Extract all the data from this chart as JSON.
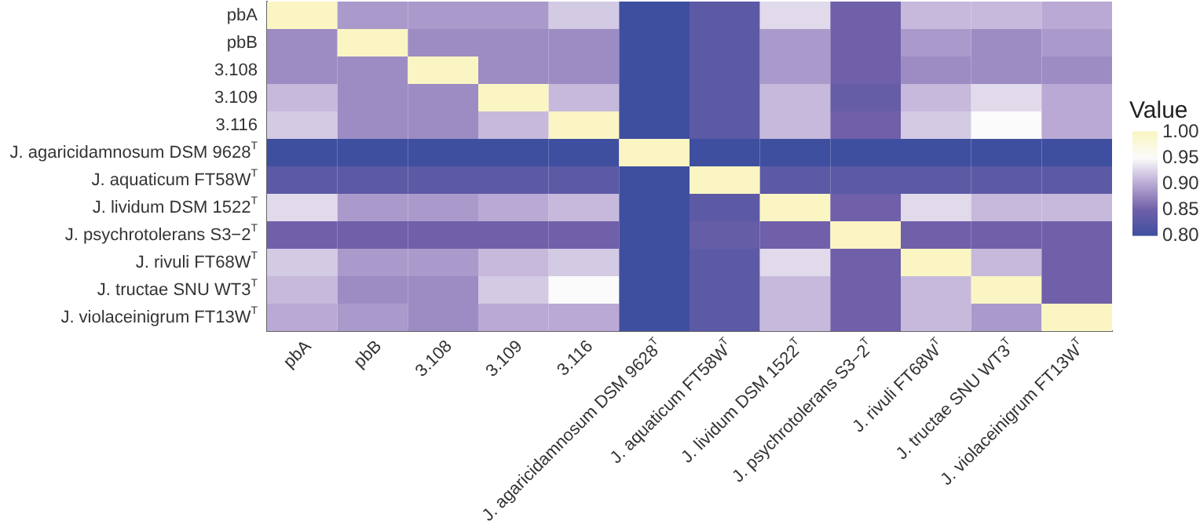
{
  "chart_data": {
    "type": "heatmap",
    "categories": [
      "pbA",
      "pbB",
      "3.108",
      "3.109",
      "3.116",
      "J. agaricidamnosum DSM 9628$^{T}$",
      "J. aquaticum FT58W$^{T}$",
      "J. lividum DSM 1522$^{T}$",
      "J. psychrotolerans S3−2$^{T}$",
      "J. rivuli FT68W$^{T}$",
      "J. tructae SNU WT3$^{T}$",
      "J. violaceinigrum FT13W$^{T}$"
    ],
    "y_categories": [
      "pbA",
      "pbB",
      "3.108",
      "3.109",
      "3.116",
      "J. agaricidamnosum DSM 9628$^{T}$",
      "J. aquaticum FT58W$^{T}$",
      "J. lividum DSM 1522$^{T}$",
      "J. psychrotolerans S3−2$^{T}$",
      "J. rivuli FT68W$^{T}$",
      "J. tructae SNU WT3$^{T}$",
      "J. violaceinigrum FT13W$^{T}$"
    ],
    "cells": [
      [
        1.0,
        0.89,
        0.89,
        0.89,
        0.92,
        0.8,
        0.83,
        0.93,
        0.85,
        0.91,
        0.91,
        0.9
      ],
      [
        0.88,
        1.0,
        0.88,
        0.88,
        0.88,
        0.8,
        0.83,
        0.89,
        0.85,
        0.89,
        0.88,
        0.89
      ],
      [
        0.88,
        0.88,
        1.0,
        0.88,
        0.88,
        0.8,
        0.83,
        0.89,
        0.85,
        0.88,
        0.88,
        0.88
      ],
      [
        0.91,
        0.88,
        0.88,
        1.0,
        0.91,
        0.8,
        0.83,
        0.91,
        0.84,
        0.91,
        0.93,
        0.9
      ],
      [
        0.92,
        0.88,
        0.88,
        0.91,
        1.0,
        0.8,
        0.83,
        0.91,
        0.85,
        0.92,
        0.95,
        0.9
      ],
      [
        0.8,
        0.8,
        0.8,
        0.8,
        0.8,
        1.0,
        0.8,
        0.8,
        0.8,
        0.8,
        0.8,
        0.8
      ],
      [
        0.83,
        0.83,
        0.83,
        0.83,
        0.83,
        0.8,
        1.0,
        0.83,
        0.83,
        0.83,
        0.83,
        0.83
      ],
      [
        0.93,
        0.89,
        0.89,
        0.9,
        0.91,
        0.8,
        0.83,
        1.0,
        0.85,
        0.93,
        0.91,
        0.91
      ],
      [
        0.85,
        0.85,
        0.85,
        0.85,
        0.85,
        0.8,
        0.84,
        0.85,
        1.0,
        0.85,
        0.85,
        0.85
      ],
      [
        0.92,
        0.89,
        0.89,
        0.91,
        0.92,
        0.8,
        0.83,
        0.93,
        0.85,
        1.0,
        0.91,
        0.85
      ],
      [
        0.91,
        0.88,
        0.88,
        0.92,
        0.95,
        0.8,
        0.83,
        0.91,
        0.85,
        0.91,
        1.0,
        0.85
      ],
      [
        0.9,
        0.89,
        0.88,
        0.9,
        0.9,
        0.8,
        0.83,
        0.91,
        0.85,
        0.91,
        0.89,
        1.0
      ]
    ],
    "legend_title": "Value",
    "clim": [
      0.8,
      1.0
    ],
    "cticks": [
      {
        "value": 0.8,
        "label": "0.80"
      },
      {
        "value": 0.85,
        "label": "0.85"
      },
      {
        "value": 0.9,
        "label": "0.90"
      },
      {
        "value": 0.95,
        "label": "0.95"
      },
      {
        "value": 1.0,
        "label": "1.00"
      }
    ]
  }
}
